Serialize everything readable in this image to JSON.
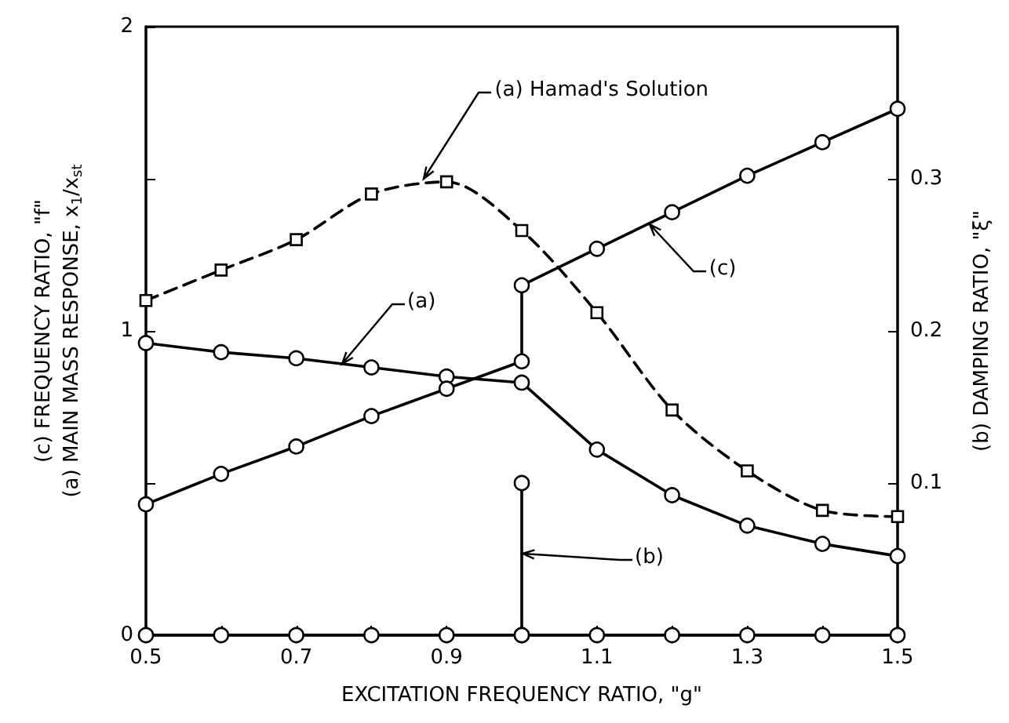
{
  "chart_data": {
    "type": "line",
    "xlabel": "EXCITATION FREQUENCY RATIO, \"g\"",
    "ylabel": "(c) FREQUENCY RATIO, \"f\"\n(a) MAIN MASS RESPONSE, x$_{1}$/x$_{st}$",
    "y2label": "(b) DAMPING RATIO, \"ξ\"",
    "xlim": [
      0.5,
      1.5
    ],
    "xticks": [
      0.5,
      {
        "value": 0.6,
        "label": null
      },
      0.7,
      {
        "value": 0.8,
        "label": null
      },
      0.9,
      {
        "value": 1.0,
        "label": null
      },
      1.1,
      {
        "value": 1.2,
        "label": null
      },
      1.3,
      {
        "value": 1.4,
        "label": null
      },
      1.5
    ],
    "ylim": [
      0,
      2
    ],
    "yticks": [
      0,
      {
        "value": 0.5,
        "label": null
      },
      1,
      {
        "value": 1.5,
        "label": null
      },
      2
    ],
    "y2lim": [
      0,
      0.4
    ],
    "y2ticks": [
      0.1,
      0.2,
      0.3
    ],
    "grid": false,
    "series": [
      {
        "color": "#000000",
        "marker": "circle",
        "line_style": "solid",
        "x": [
          0.5,
          0.6,
          0.7,
          0.8,
          0.9,
          1.0,
          1.1,
          1.2,
          1.3,
          1.4,
          1.5
        ],
        "values": [
          0.96,
          0.93,
          0.91,
          0.88,
          0.85,
          0.83,
          0.61,
          0.46,
          0.36,
          0.3,
          0.26
        ]
      },
      {
        "color": "#000000",
        "marker": "circle",
        "line_style": "solid",
        "x": [
          0.5,
          0.6,
          0.7,
          0.8,
          0.9,
          1.0,
          1.0,
          1.1,
          1.2,
          1.3,
          1.4,
          1.5
        ],
        "values": [
          0.43,
          0.53,
          0.62,
          0.72,
          0.81,
          0.9,
          1.15,
          1.27,
          1.39,
          1.51,
          1.62,
          1.73
        ]
      },
      {
        "color": "#000000",
        "marker": "square",
        "line_style": "dashed",
        "x": [
          0.5,
          0.6,
          0.7,
          0.8,
          0.9,
          1.0,
          1.1,
          1.2,
          1.3,
          1.4,
          1.5
        ],
        "values": [
          1.1,
          1.2,
          1.3,
          1.45,
          1.49,
          1.33,
          1.06,
          0.74,
          0.54,
          0.41,
          0.39
        ]
      },
      {
        "color": "#000000",
        "marker": "circle",
        "line_style": "solid",
        "axis": "y2",
        "x": [
          0.5,
          0.6,
          0.7,
          0.8,
          0.9,
          1.0,
          1.0,
          1.0,
          1.1,
          1.2,
          1.3,
          1.4,
          1.5
        ],
        "values": [
          0,
          0,
          0,
          0,
          0,
          0,
          0.1,
          0,
          0,
          0,
          0,
          0,
          0
        ]
      }
    ],
    "annotations": [
      {
        "text": "(a) Hamad's Solution",
        "x": 0.87,
        "y": 1.5
      },
      {
        "text": "(a)",
        "x": 0.76,
        "y": 0.89
      },
      {
        "text": "(c)",
        "x": 1.17,
        "y": 1.35
      },
      {
        "text": "(b)",
        "x": 1.0,
        "y": 0.27
      }
    ]
  }
}
